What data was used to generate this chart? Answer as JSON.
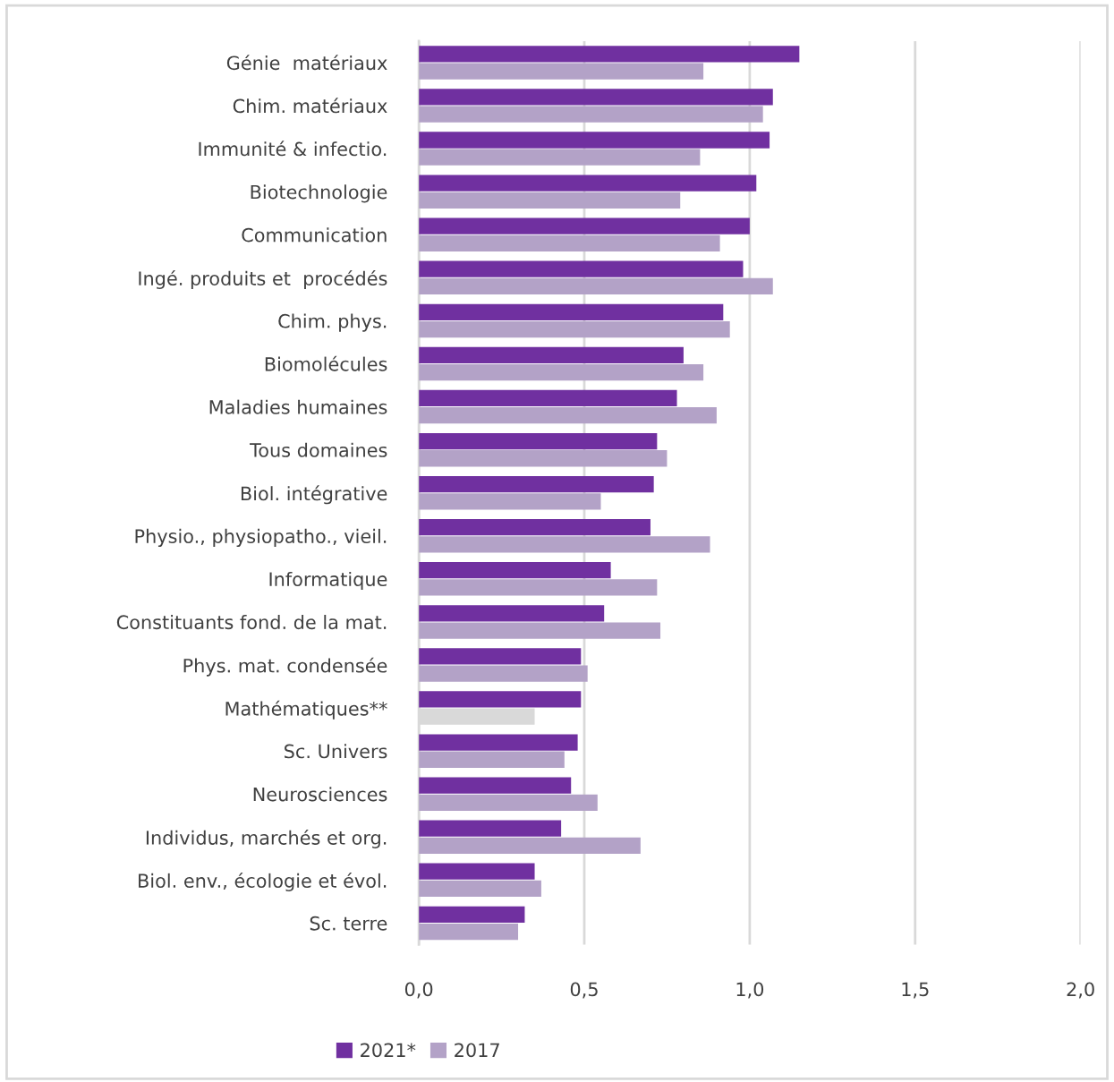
{
  "chart_data": {
    "type": "bar",
    "orientation": "horizontal",
    "categories": [
      "Génie  matériaux",
      "Chim. matériaux",
      "Immunité & infectio.",
      "Biotechnologie",
      "Communication",
      "Ingé. produits et  procédés",
      "Chim. phys.",
      "Biomolécules",
      "Maladies humaines",
      "Tous domaines",
      "Biol. intégrative",
      "Physio., physiopatho., vieil.",
      "Informatique",
      "Constituants fond. de la mat.",
      "Phys. mat. condensée",
      "Mathématiques**",
      "Sc. Univers",
      "Neurosciences",
      "Individus, marchés et org.",
      "Biol. env., écologie et évol.",
      "Sc. terre"
    ],
    "series": [
      {
        "name": "2021*",
        "color": "#7030a0",
        "values": [
          1.15,
          1.07,
          1.06,
          1.02,
          1.0,
          0.98,
          0.92,
          0.8,
          0.78,
          0.72,
          0.71,
          0.7,
          0.58,
          0.56,
          0.49,
          0.49,
          0.48,
          0.46,
          0.43,
          0.35,
          0.32
        ]
      },
      {
        "name": "2017",
        "color": "#b3a2c7",
        "colors": [
          "#b3a2c7",
          "#b3a2c7",
          "#b3a2c7",
          "#b3a2c7",
          "#b3a2c7",
          "#b3a2c7",
          "#b3a2c7",
          "#b3a2c7",
          "#b3a2c7",
          "#b3a2c7",
          "#b3a2c7",
          "#b3a2c7",
          "#b3a2c7",
          "#b3a2c7",
          "#b3a2c7",
          "#d9d9d9",
          "#b3a2c7",
          "#b3a2c7",
          "#b3a2c7",
          "#b3a2c7",
          "#b3a2c7"
        ],
        "values": [
          0.86,
          1.04,
          0.85,
          0.79,
          0.91,
          1.07,
          0.94,
          0.86,
          0.9,
          0.75,
          0.55,
          0.88,
          0.72,
          0.73,
          0.51,
          0.35,
          0.44,
          0.54,
          0.67,
          0.37,
          0.3
        ]
      }
    ],
    "xlim": [
      0,
      2
    ],
    "xticks": [
      {
        "value": 0,
        "label": "0,0"
      },
      {
        "value": 0.5,
        "label": "0,5"
      },
      {
        "value": 1,
        "label": "1,0"
      },
      {
        "value": 1.5,
        "label": "1,5"
      },
      {
        "value": 2,
        "label": "2,0"
      }
    ],
    "grid": "x",
    "legend": "bottom"
  }
}
